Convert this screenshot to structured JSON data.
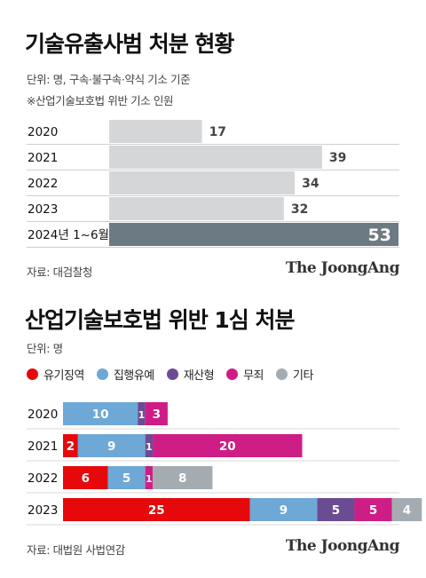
{
  "chart_data": [
    {
      "type": "bar",
      "orientation": "horizontal",
      "title": "기술유출사범 처분 현황",
      "unit_note": "단위: 명, 구속·불구속·약식 기소 기준",
      "subnote": "※산업기술보호법 위반 기소 인원",
      "categories": [
        "2020",
        "2021",
        "2022",
        "2023",
        "2024년 1~6월"
      ],
      "values": [
        17,
        39,
        34,
        32,
        53
      ],
      "highlight_index": 4,
      "colors": {
        "normal": "#d4d6d8",
        "highlight": "#6c7a83",
        "label": "#444444",
        "label_highlight": "#ffffff"
      },
      "source": "자료: 대검찰청"
    },
    {
      "type": "bar",
      "orientation": "horizontal",
      "stacked": true,
      "title": "산업기술보호법 위반 1심 처분",
      "unit_note": "단위: 명",
      "categories": [
        "2020",
        "2021",
        "2022",
        "2023"
      ],
      "series": [
        {
          "name": "유기징역",
          "color": "#e5090c",
          "values": [
            0,
            2,
            6,
            25
          ]
        },
        {
          "name": "집행유예",
          "color": "#6ea8d6",
          "values": [
            10,
            9,
            5,
            9
          ]
        },
        {
          "name": "재산형",
          "color": "#6a4c93",
          "values": [
            1,
            1,
            0,
            5
          ]
        },
        {
          "name": "무죄",
          "color": "#cf1d86",
          "values": [
            3,
            20,
            1,
            5
          ]
        },
        {
          "name": "기타",
          "color": "#a4acb2",
          "values": [
            0,
            0,
            8,
            4
          ]
        }
      ],
      "source": "자료: 대법원 사법연감"
    }
  ],
  "brand": "The JoongAng"
}
